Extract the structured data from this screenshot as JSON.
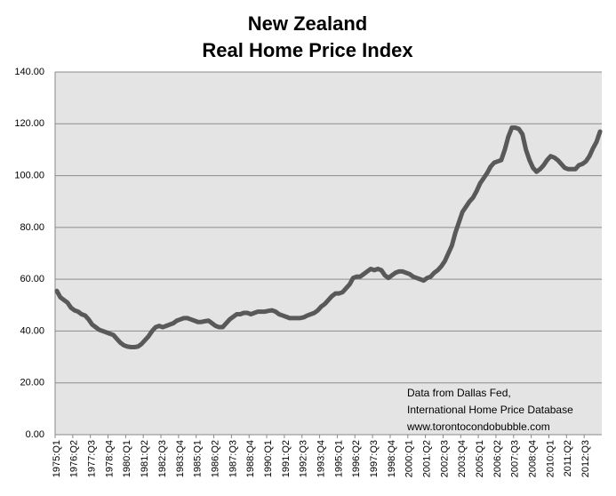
{
  "chart_data": {
    "type": "line",
    "title": [
      "New Zealand",
      "Real Home Price Index"
    ],
    "annotation": [
      "Data from Dallas Fed,",
      "International Home Price Database",
      "www.torontocondobubble.com"
    ],
    "color": "#595959",
    "grid": true,
    "ylim": [
      0,
      140
    ],
    "yticks": [
      {
        "value": 0,
        "label": "0.00"
      },
      {
        "value": 20,
        "label": "20.00"
      },
      {
        "value": 40,
        "label": "40.00"
      },
      {
        "value": 60,
        "label": "60.00"
      },
      {
        "value": 80,
        "label": "80.00"
      },
      {
        "value": 100,
        "label": "100.00"
      },
      {
        "value": 120,
        "label": "120.00"
      },
      {
        "value": 140,
        "label": "140.00"
      }
    ],
    "categories": [
      "1975:Q1",
      null,
      null,
      null,
      null,
      "1976:Q2",
      null,
      null,
      null,
      null,
      "1977:Q3",
      null,
      null,
      null,
      null,
      "1978:Q4",
      null,
      null,
      null,
      null,
      "1980:Q1",
      null,
      null,
      null,
      null,
      "1981:Q2",
      null,
      null,
      null,
      null,
      "1982:Q3",
      null,
      null,
      null,
      null,
      "1983:Q4",
      null,
      null,
      null,
      null,
      "1985:Q1",
      null,
      null,
      null,
      null,
      "1986:Q2",
      null,
      null,
      null,
      null,
      "1987:Q3",
      null,
      null,
      null,
      null,
      "1988:Q4",
      null,
      null,
      null,
      null,
      "1990:Q1",
      null,
      null,
      null,
      null,
      "1991:Q2",
      null,
      null,
      null,
      null,
      "1992:Q3",
      null,
      null,
      null,
      null,
      "1993:Q4",
      null,
      null,
      null,
      null,
      "1995:Q1",
      null,
      null,
      null,
      null,
      "1996:Q2",
      null,
      null,
      null,
      null,
      "1997:Q3",
      null,
      null,
      null,
      null,
      "1998:Q4",
      null,
      null,
      null,
      null,
      "2000:Q1",
      null,
      null,
      null,
      null,
      "2001:Q2",
      null,
      null,
      null,
      null,
      "2002:Q3",
      null,
      null,
      null,
      null,
      "2003:Q4",
      null,
      null,
      null,
      null,
      "2005:Q1",
      null,
      null,
      null,
      null,
      "2006:Q2",
      null,
      null,
      null,
      null,
      "2007:Q3",
      null,
      null,
      null,
      null,
      "2008:Q4",
      null,
      null,
      null,
      null,
      "2010:Q1",
      null,
      null,
      null,
      null,
      "2011:Q2",
      null,
      null,
      null,
      null,
      "2012:Q3",
      null,
      null,
      null,
      null
    ],
    "values": [
      55.5,
      53,
      52,
      51,
      49,
      48,
      47.5,
      46.5,
      46,
      44.5,
      42.5,
      41.5,
      40.5,
      40,
      39.5,
      39,
      38.5,
      37,
      35.5,
      34.5,
      34,
      33.8,
      33.8,
      34,
      35,
      36.5,
      38,
      40,
      41.5,
      42,
      41.5,
      42,
      42.5,
      43,
      44,
      44.5,
      45,
      45,
      44.5,
      44,
      43.5,
      43.5,
      43.8,
      44,
      43,
      42,
      41.5,
      41.5,
      43,
      44.5,
      45.5,
      46.5,
      46.5,
      47,
      47,
      46.5,
      47,
      47.5,
      47.5,
      47.5,
      47.8,
      48,
      47.5,
      46.5,
      46,
      45.5,
      45,
      45,
      45,
      45,
      45.3,
      46,
      46.5,
      47,
      48,
      49.5,
      50.5,
      52,
      53.5,
      54.5,
      54.5,
      55,
      56.5,
      58,
      60.5,
      61,
      61,
      62,
      63,
      64,
      63.5,
      64,
      63.5,
      61.5,
      60.5,
      61.5,
      62.5,
      63,
      63,
      62.5,
      62,
      61,
      60.5,
      60,
      59.5,
      60.5,
      61,
      62.5,
      63.5,
      65,
      67,
      70,
      73,
      78,
      82,
      86,
      88,
      90,
      91.5,
      94,
      97,
      99,
      101,
      103.5,
      105,
      105.5,
      106,
      110,
      115,
      118.5,
      118.5,
      118,
      116,
      110,
      106,
      103,
      101.5,
      102.5,
      104,
      106,
      107.5,
      107,
      106,
      104.5,
      103,
      102.5,
      102.5,
      102.5,
      104,
      104.5,
      105.5,
      107.5,
      110.5,
      113,
      117
    ]
  }
}
